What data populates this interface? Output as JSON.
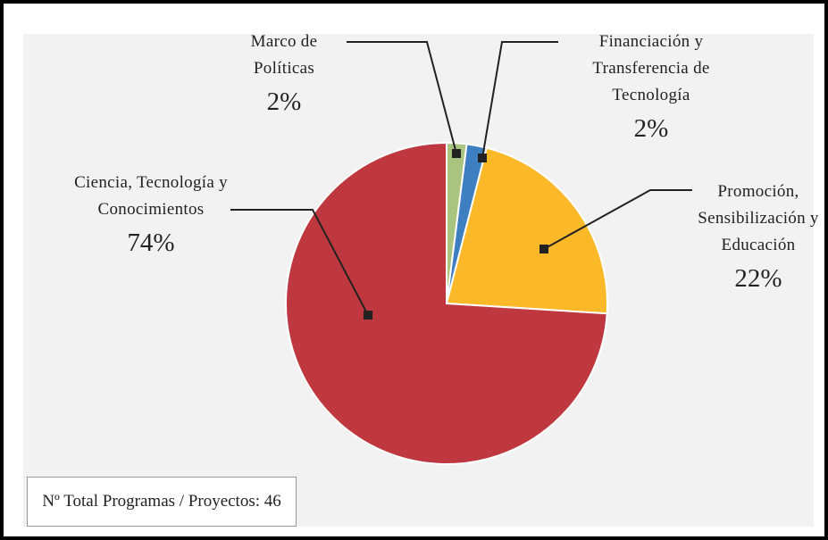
{
  "chart_data": {
    "type": "pie",
    "categories": [
      "Marco de Políticas",
      "Financiación y Transferencia de Tecnología",
      "Promoción, Sensibilización y Educación",
      "Ciencia, Tecnología y Conocimientos"
    ],
    "values": [
      2,
      2,
      22,
      74
    ],
    "value_labels": [
      "2%",
      "2%",
      "22%",
      "74%"
    ],
    "colors": [
      "#a9c47f",
      "#3d7fc1",
      "#fbb829",
      "#c0383f"
    ],
    "annotation": "Nº Total Programas / Proyectos: 46"
  }
}
